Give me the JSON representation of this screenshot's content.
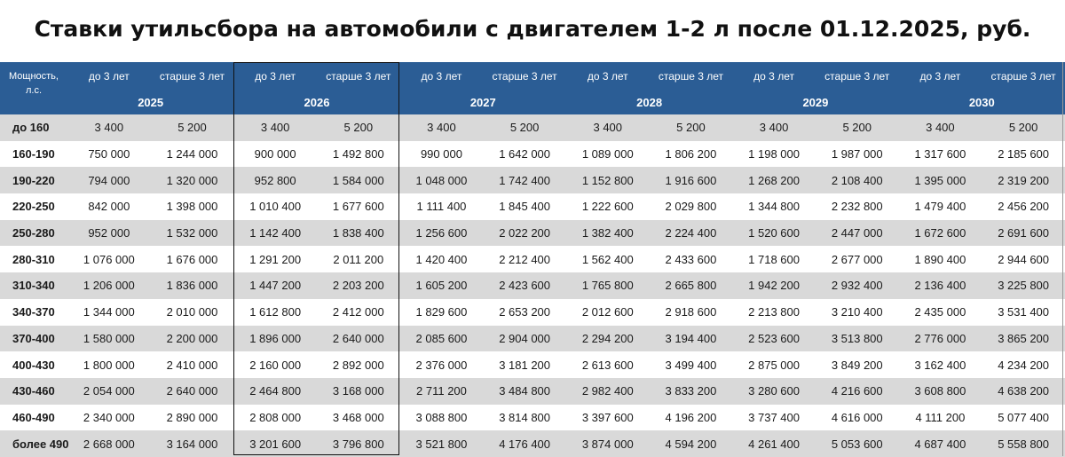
{
  "title": "Ставки утильсбора на автомобили с двигателем 1-2 л после 01.12.2025, руб.",
  "table": {
    "power_header": "Мощность, л.с.",
    "age_labels": [
      "до 3 лет",
      "старше 3 лет"
    ],
    "years": [
      "2025",
      "2026",
      "2027",
      "2028",
      "2029",
      "2030"
    ],
    "highlighted_year": "2026",
    "rows": [
      {
        "power": "до 160",
        "values": [
          "3 400",
          "5 200",
          "3 400",
          "5 200",
          "3 400",
          "5 200",
          "3 400",
          "5 200",
          "3 400",
          "5 200",
          "3 400",
          "5 200"
        ]
      },
      {
        "power": "160-190",
        "values": [
          "750 000",
          "1 244 000",
          "900 000",
          "1 492 800",
          "990 000",
          "1 642 000",
          "1 089 000",
          "1 806 200",
          "1 198 000",
          "1 987 000",
          "1 317 600",
          "2 185 600"
        ]
      },
      {
        "power": "190-220",
        "values": [
          "794 000",
          "1 320 000",
          "952 800",
          "1 584 000",
          "1 048 000",
          "1 742 400",
          "1 152 800",
          "1 916 600",
          "1 268 200",
          "2 108 400",
          "1 395 000",
          "2 319 200"
        ]
      },
      {
        "power": "220-250",
        "values": [
          "842 000",
          "1 398 000",
          "1 010 400",
          "1 677 600",
          "1 111 400",
          "1 845 400",
          "1 222 600",
          "2 029 800",
          "1 344 800",
          "2 232 800",
          "1 479 400",
          "2 456 200"
        ]
      },
      {
        "power": "250-280",
        "values": [
          "952 000",
          "1 532 000",
          "1 142 400",
          "1 838 400",
          "1 256 600",
          "2 022 200",
          "1 382 400",
          "2 224 400",
          "1 520 600",
          "2 447 000",
          "1 672 600",
          "2 691 600"
        ]
      },
      {
        "power": "280-310",
        "values": [
          "1 076 000",
          "1 676 000",
          "1 291 200",
          "2 011 200",
          "1 420 400",
          "2 212 400",
          "1 562 400",
          "2 433 600",
          "1 718 600",
          "2 677 000",
          "1 890 400",
          "2 944 600"
        ]
      },
      {
        "power": "310-340",
        "values": [
          "1 206 000",
          "1 836 000",
          "1 447 200",
          "2 203 200",
          "1 605 200",
          "2 423 600",
          "1 765 800",
          "2 665 800",
          "1 942 200",
          "2 932 400",
          "2 136 400",
          "3 225 800"
        ]
      },
      {
        "power": "340-370",
        "values": [
          "1 344 000",
          "2 010 000",
          "1 612 800",
          "2 412 000",
          "1 829 600",
          "2 653 200",
          "2 012 600",
          "2 918 600",
          "2 213 800",
          "3 210 400",
          "2 435 000",
          "3 531 400"
        ]
      },
      {
        "power": "370-400",
        "values": [
          "1 580 000",
          "2 200 000",
          "1 896 000",
          "2 640 000",
          "2 085 600",
          "2 904 000",
          "2 294 200",
          "3 194 400",
          "2 523 600",
          "3 513 800",
          "2 776 000",
          "3 865 200"
        ]
      },
      {
        "power": "400-430",
        "values": [
          "1 800 000",
          "2 410 000",
          "2 160 000",
          "2 892 000",
          "2 376 000",
          "3 181 200",
          "2 613 600",
          "3 499 400",
          "2 875 000",
          "3 849 200",
          "3 162 400",
          "4 234 200"
        ]
      },
      {
        "power": "430-460",
        "values": [
          "2 054 000",
          "2 640 000",
          "2 464 800",
          "3 168 000",
          "2 711 200",
          "3 484 800",
          "2 982 400",
          "3 833 200",
          "3 280 600",
          "4 216 600",
          "3 608 800",
          "4 638 200"
        ]
      },
      {
        "power": "460-490",
        "values": [
          "2 340 000",
          "2 890 000",
          "2 808 000",
          "3 468 000",
          "3 088 800",
          "3 814 800",
          "3 397 600",
          "4 196 200",
          "3 737 400",
          "4 616 000",
          "4 111 200",
          "5 077 400"
        ]
      },
      {
        "power": "более 490",
        "values": [
          "2 668 000",
          "3 164 000",
          "3 201 600",
          "3 796 800",
          "3 521 800",
          "4 176 400",
          "3 874 000",
          "4 594 200",
          "4 261 400",
          "5 053 600",
          "4 687 400",
          "5 558 800"
        ]
      }
    ]
  },
  "colors": {
    "header_bg": "#2b5d95",
    "header_text": "#ffffff",
    "stripe": "#d9d9d9",
    "highlight_border": "#111111"
  }
}
